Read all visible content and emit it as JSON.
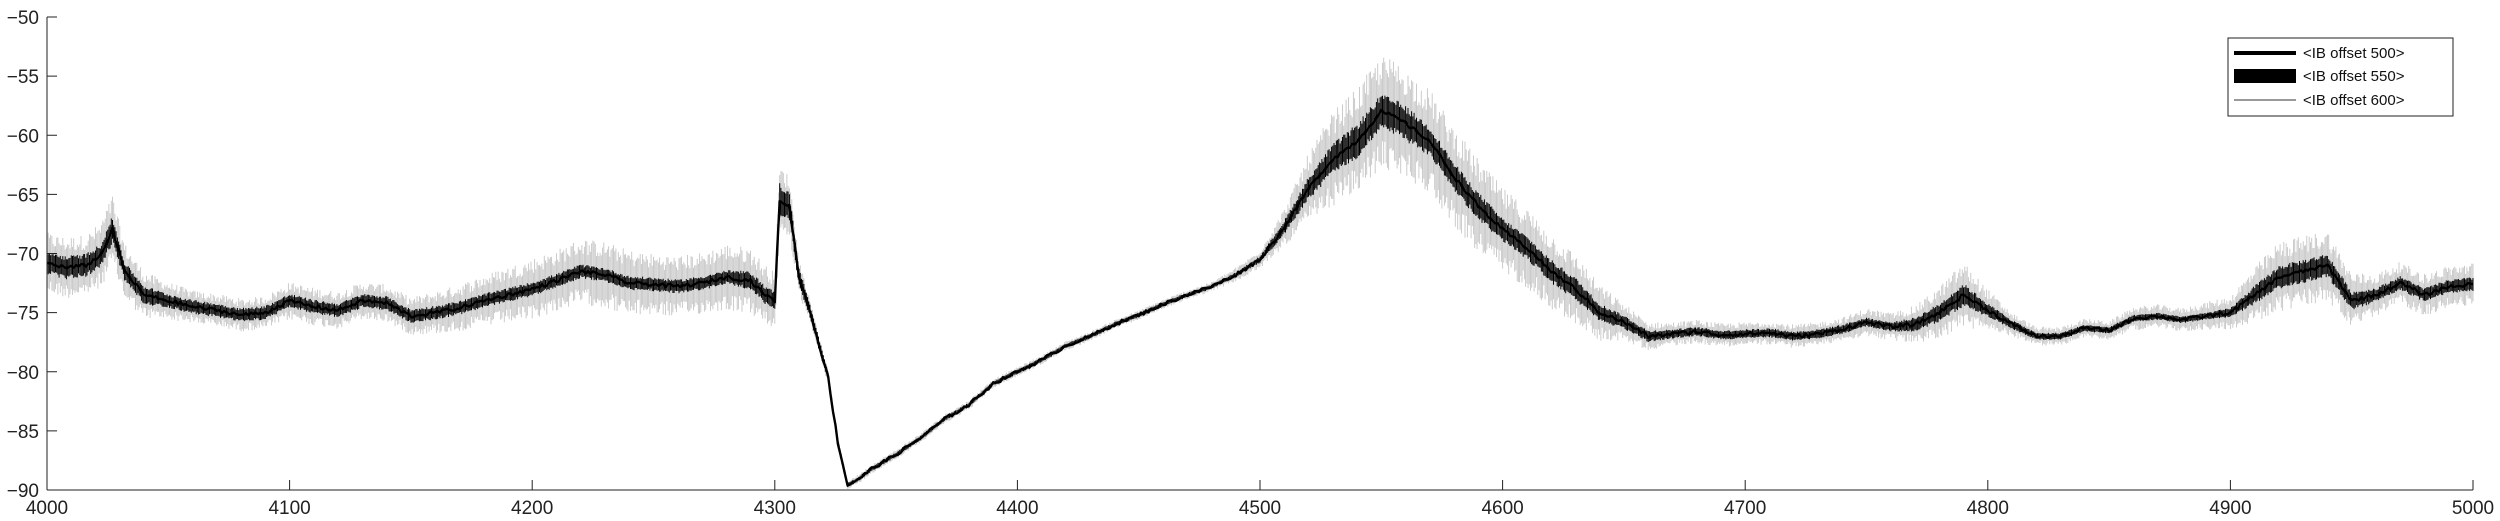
{
  "chart_data": {
    "type": "line",
    "title": "",
    "xlabel": "",
    "ylabel": "",
    "xlim": [
      4000,
      5000
    ],
    "ylim": [
      -90,
      -50
    ],
    "xticks": [
      4000,
      4100,
      4200,
      4300,
      4400,
      4500,
      4600,
      4700,
      4800,
      4900,
      5000
    ],
    "yticks": [
      -90,
      -85,
      -80,
      -75,
      -70,
      -65,
      -60,
      -55,
      -50
    ],
    "xtick_labels": [
      "4000",
      "4100",
      "4200",
      "4300",
      "4400",
      "4500",
      "4600",
      "4700",
      "4800",
      "4900",
      "5000"
    ],
    "ytick_labels": [
      "−90",
      "−85",
      "−80",
      "−75",
      "−70",
      "−65",
      "−60",
      "−55",
      "−50"
    ],
    "grid": false,
    "legend_position": "top-right",
    "series": [
      {
        "name": "<IB offset 500>",
        "color": "#000000",
        "style": "thick line",
        "x": [
          4000,
          4008,
          4016,
          4022,
          4027,
          4032,
          4040,
          4050,
          4060,
          4070,
          4080,
          4090,
          4100,
          4110,
          4120,
          4130,
          4140,
          4150,
          4160,
          4170,
          4180,
          4190,
          4200,
          4210,
          4220,
          4230,
          4240,
          4250,
          4260,
          4270,
          4280,
          4290,
          4296,
          4300,
          4302,
          4306,
          4310,
          4314,
          4318,
          4322,
          4326,
          4330,
          4335,
          4340,
          4350,
          4360,
          4370,
          4380,
          4390,
          4400,
          4410,
          4420,
          4430,
          4440,
          4450,
          4460,
          4470,
          4480,
          4490,
          4500,
          4510,
          4520,
          4530,
          4540,
          4550,
          4556,
          4560,
          4570,
          4580,
          4590,
          4600,
          4610,
          4620,
          4630,
          4640,
          4650,
          4660,
          4670,
          4680,
          4690,
          4700,
          4710,
          4720,
          4730,
          4740,
          4750,
          4760,
          4770,
          4780,
          4790,
          4800,
          4810,
          4820,
          4830,
          4840,
          4850,
          4860,
          4870,
          4880,
          4890,
          4900,
          4910,
          4920,
          4930,
          4940,
          4950,
          4960,
          4970,
          4980,
          4990,
          5000
        ],
        "values": [
          -70.8,
          -71.2,
          -71.0,
          -70.2,
          -68.0,
          -71.5,
          -73.5,
          -74.0,
          -74.5,
          -74.8,
          -75.2,
          -75.0,
          -74.0,
          -74.5,
          -74.8,
          -74.0,
          -74.2,
          -75.3,
          -75.0,
          -74.6,
          -74.0,
          -73.5,
          -73.0,
          -72.3,
          -71.5,
          -71.8,
          -72.5,
          -72.6,
          -72.8,
          -72.5,
          -72.0,
          -72.3,
          -73.5,
          -74.0,
          -65.5,
          -66.0,
          -72.0,
          -74.5,
          -77.5,
          -80.5,
          -86.0,
          -89.6,
          -89.0,
          -88.2,
          -87.0,
          -85.6,
          -84.0,
          -82.8,
          -81.0,
          -80.0,
          -79.0,
          -77.8,
          -77.0,
          -76.0,
          -75.2,
          -74.3,
          -73.5,
          -72.8,
          -71.8,
          -70.5,
          -67.8,
          -64.5,
          -62.0,
          -60.5,
          -58.0,
          -58.5,
          -59.0,
          -60.5,
          -63.5,
          -66.0,
          -68.0,
          -69.5,
          -71.5,
          -73.0,
          -75.0,
          -75.8,
          -77.0,
          -76.8,
          -76.6,
          -76.9,
          -76.8,
          -76.7,
          -77.0,
          -76.8,
          -76.4,
          -75.8,
          -76.2,
          -76.0,
          -75.0,
          -73.5,
          -74.8,
          -76.0,
          -77.0,
          -77.0,
          -76.3,
          -76.5,
          -75.5,
          -75.3,
          -75.6,
          -75.3,
          -75.0,
          -73.5,
          -72.0,
          -71.5,
          -71.0,
          -74.0,
          -73.5,
          -72.5,
          -73.5,
          -72.8,
          -72.6
        ],
        "amplitude": [
          1.0,
          1.0,
          1.0,
          1.0,
          1.2,
          0.8,
          0.8,
          0.6,
          0.6,
          0.6,
          0.6,
          0.6,
          0.6,
          0.6,
          0.6,
          0.6,
          0.6,
          0.6,
          0.6,
          0.6,
          0.6,
          0.6,
          0.6,
          0.6,
          0.6,
          0.6,
          0.6,
          0.6,
          0.6,
          0.6,
          0.6,
          0.8,
          0.8,
          0.8,
          1.5,
          1.2,
          0.8,
          0.6,
          0.5,
          0.4,
          0.3,
          0.2,
          0.2,
          0.2,
          0.2,
          0.2,
          0.2,
          0.2,
          0.2,
          0.2,
          0.2,
          0.2,
          0.2,
          0.2,
          0.2,
          0.2,
          0.2,
          0.2,
          0.2,
          0.3,
          0.6,
          1.0,
          1.3,
          1.5,
          1.5,
          1.5,
          1.5,
          1.3,
          1.2,
          1.2,
          1.0,
          1.0,
          1.0,
          1.0,
          0.8,
          0.6,
          0.5,
          0.4,
          0.4,
          0.4,
          0.4,
          0.4,
          0.4,
          0.4,
          0.4,
          0.4,
          0.4,
          0.6,
          0.8,
          1.0,
          0.6,
          0.4,
          0.3,
          0.3,
          0.3,
          0.3,
          0.3,
          0.3,
          0.3,
          0.3,
          0.4,
          0.8,
          1.0,
          1.0,
          1.0,
          0.8,
          0.6,
          0.6,
          0.6,
          0.6,
          0.6
        ]
      },
      {
        "name": "<IB offset 550>",
        "color": "#000000",
        "style": "filled band"
      },
      {
        "name": "<IB offset 600>",
        "color": "#c8c8c8",
        "style": "thin line",
        "amplitude": [
          2.6,
          2.6,
          2.6,
          2.8,
          3.0,
          2.4,
          2.0,
          1.6,
          1.4,
          1.4,
          1.4,
          1.4,
          1.6,
          1.6,
          1.6,
          1.6,
          1.6,
          1.6,
          1.8,
          2.0,
          2.2,
          2.4,
          2.6,
          2.6,
          2.8,
          2.8,
          2.8,
          2.6,
          2.6,
          2.6,
          2.8,
          2.8,
          2.6,
          2.4,
          3.0,
          2.6,
          1.6,
          1.0,
          0.8,
          0.6,
          0.5,
          0.4,
          0.4,
          0.4,
          0.4,
          0.4,
          0.4,
          0.4,
          0.4,
          0.4,
          0.4,
          0.4,
          0.4,
          0.4,
          0.4,
          0.4,
          0.4,
          0.4,
          0.6,
          0.8,
          1.6,
          3.0,
          4.0,
          4.5,
          4.8,
          4.8,
          4.6,
          4.4,
          4.2,
          4.0,
          3.6,
          3.4,
          3.2,
          3.0,
          2.4,
          1.6,
          1.2,
          1.0,
          1.0,
          1.0,
          1.0,
          1.0,
          1.0,
          1.0,
          1.0,
          1.2,
          1.2,
          1.6,
          2.2,
          2.8,
          1.8,
          1.0,
          0.8,
          0.8,
          0.8,
          0.8,
          1.0,
          1.0,
          1.0,
          1.2,
          1.4,
          2.4,
          3.0,
          3.0,
          3.0,
          2.4,
          1.8,
          1.8,
          1.8,
          1.8,
          1.8
        ]
      }
    ]
  }
}
